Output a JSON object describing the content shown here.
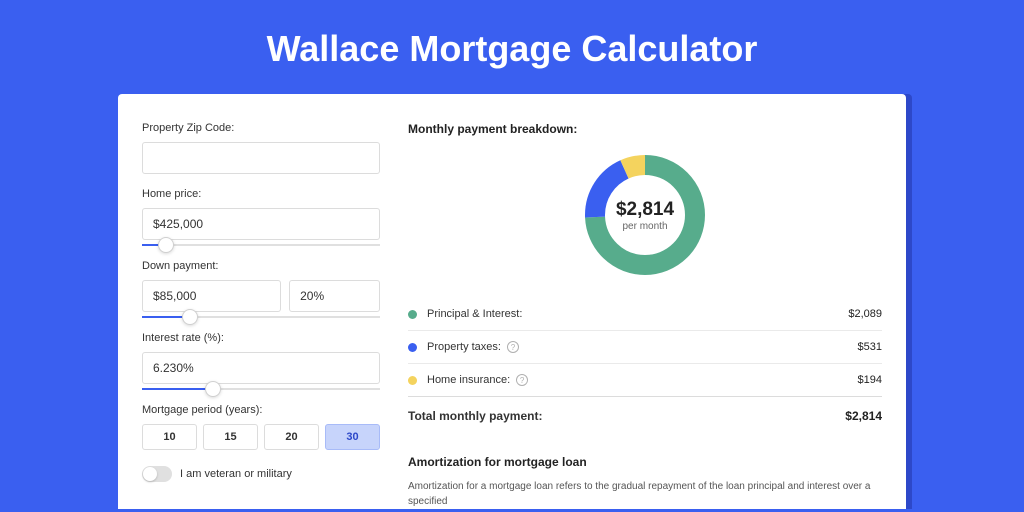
{
  "page": {
    "title": "Wallace Mortgage Calculator",
    "background_color": "#3a5ff0",
    "card_background": "#ffffff",
    "card_shadow_color": "#2d48c9"
  },
  "form": {
    "zip": {
      "label": "Property Zip Code:",
      "value": ""
    },
    "home_price": {
      "label": "Home price:",
      "value": "$425,000",
      "slider_pct": 10
    },
    "down_payment": {
      "label": "Down payment:",
      "value": "$85,000",
      "pct_value": "20%",
      "slider_pct": 20
    },
    "interest_rate": {
      "label": "Interest rate (%):",
      "value": "6.230%",
      "slider_pct": 30
    },
    "mortgage_period": {
      "label": "Mortgage period (years):",
      "options": [
        "10",
        "15",
        "20",
        "30"
      ],
      "active_index": 3
    },
    "veteran": {
      "label": "I am veteran or military",
      "checked": false
    }
  },
  "breakdown": {
    "title": "Monthly payment breakdown:",
    "donut": {
      "center_value": "$2,814",
      "center_sub": "per month",
      "segments": [
        {
          "label": "Principal & Interest:",
          "value": "$2,089",
          "color": "#57ac8c",
          "pct": 74.2,
          "has_info": false
        },
        {
          "label": "Property taxes:",
          "value": "$531",
          "color": "#3a5ff0",
          "pct": 18.9,
          "has_info": true
        },
        {
          "label": "Home insurance:",
          "value": "$194",
          "color": "#f4d35e",
          "pct": 6.9,
          "has_info": true
        }
      ]
    },
    "total_label": "Total monthly payment:",
    "total_value": "$2,814"
  },
  "amortization": {
    "title": "Amortization for mortgage loan",
    "body": "Amortization for a mortgage loan refers to the gradual repayment of the loan principal and interest over a specified"
  }
}
